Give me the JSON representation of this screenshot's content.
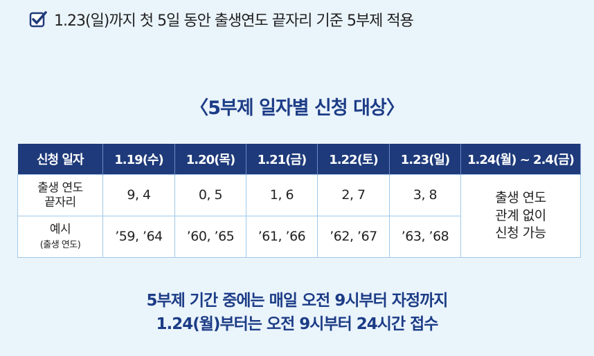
{
  "header": {
    "note": "1.23(일)까지 첫 5일 동안 출생연도 끝자리 기준 5부제 적용"
  },
  "table": {
    "title": "〈5부제 일자별 신청 대상〉",
    "columns": [
      "신청 일자",
      "1.19(수)",
      "1.20(목)",
      "1.21(금)",
      "1.22(토)",
      "1.23(일)",
      "1.24(월) ~ 2.4(금)"
    ],
    "rows": [
      {
        "label": [
          "출생 연도",
          "끝자리"
        ],
        "cells": [
          "9, 4",
          "0, 5",
          "1, 6",
          "2, 7",
          "3, 8"
        ]
      },
      {
        "label": [
          "예시",
          "(출생 연도)"
        ],
        "cells": [
          "’59, ’64",
          "’60, ’65",
          "’61, ’66",
          "’62, ’67",
          "’63, ’68"
        ]
      }
    ],
    "merged_cell": [
      "출생 연도",
      "관계 없이",
      "신청 가능"
    ]
  },
  "footer": {
    "lines": [
      "5부제 기간 중에는 매일 오전 9시부터 자정까지",
      "1.24(월)부터는 오전 9시부터 24시간 접수"
    ]
  }
}
